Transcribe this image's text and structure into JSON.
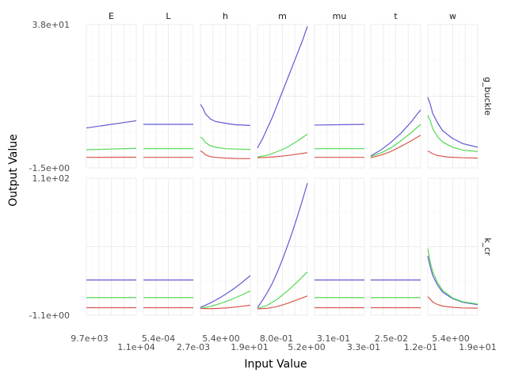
{
  "chart_data": {
    "type": "line",
    "xlabel": "Input Value",
    "ylabel": "Output Value",
    "grid": true,
    "legend": "none",
    "columns": [
      "E",
      "L",
      "h",
      "m",
      "mu",
      "t",
      "w"
    ],
    "rows": [
      "g_buckle",
      "k_cr"
    ],
    "x_tick_labels": [
      {
        "label": "9.7e+03",
        "row": "top"
      },
      {
        "label": "1.1e+04",
        "row": "bottom"
      },
      {
        "label": "5.4e-04",
        "row": "top"
      },
      {
        "label": "2.7e-03",
        "row": "bottom"
      },
      {
        "label": "5.4e+00",
        "row": "top"
      },
      {
        "label": "1.9e+01",
        "row": "bottom"
      },
      {
        "label": "8.0e-01",
        "row": "top"
      },
      {
        "label": "5.2e+00",
        "row": "bottom"
      },
      {
        "label": "3.1e-01",
        "row": "top"
      },
      {
        "label": "3.3e-01",
        "row": "bottom"
      },
      {
        "label": "2.5e-02",
        "row": "top"
      },
      {
        "label": "1.2e-01",
        "row": "bottom"
      },
      {
        "label": "5.4e+00",
        "row": "top"
      },
      {
        "label": "1.9e+01",
        "row": "bottom"
      }
    ],
    "y_ticks": [
      {
        "row": "g_buckle",
        "labels": [
          "3.8e+01",
          "-1.5e+00"
        ],
        "range": [
          -1.5,
          38
        ]
      },
      {
        "row": "k_cr",
        "labels": [
          "1.1e+02",
          "-1.1e+00"
        ],
        "range": [
          -1.1,
          110
        ]
      }
    ],
    "series_colors": [
      "#6159d4",
      "#55d955",
      "#d9574e"
    ],
    "panels": [
      {
        "row": "g_buckle",
        "col": "E",
        "series": [
          [
            [
              0,
              9.5
            ],
            [
              1,
              11.5
            ]
          ],
          [
            [
              0,
              3.5
            ],
            [
              1,
              3.9
            ]
          ],
          [
            [
              0,
              1.4
            ],
            [
              1,
              1.45
            ]
          ]
        ]
      },
      {
        "row": "g_buckle",
        "col": "L",
        "series": [
          [
            [
              0,
              10.5
            ],
            [
              1,
              10.5
            ]
          ],
          [
            [
              0,
              3.8
            ],
            [
              1,
              3.8
            ]
          ],
          [
            [
              0,
              1.4
            ],
            [
              1,
              1.4
            ]
          ]
        ]
      },
      {
        "row": "g_buckle",
        "col": "h",
        "series": [
          [
            [
              0,
              16
            ],
            [
              0.05,
              15
            ],
            [
              0.1,
              13.4
            ],
            [
              0.2,
              12
            ],
            [
              0.3,
              11.3
            ],
            [
              0.5,
              10.8
            ],
            [
              0.7,
              10.4
            ],
            [
              1,
              10.2
            ]
          ],
          [
            [
              0,
              7
            ],
            [
              0.05,
              6.5
            ],
            [
              0.1,
              5.5
            ],
            [
              0.2,
              4.6
            ],
            [
              0.3,
              4.2
            ],
            [
              0.5,
              3.8
            ],
            [
              0.7,
              3.7
            ],
            [
              1,
              3.6
            ]
          ],
          [
            [
              0,
              3.2
            ],
            [
              0.05,
              2.8
            ],
            [
              0.1,
              2.1
            ],
            [
              0.2,
              1.6
            ],
            [
              0.3,
              1.4
            ],
            [
              0.5,
              1.2
            ],
            [
              0.7,
              1.1
            ],
            [
              1,
              1.05
            ]
          ]
        ]
      },
      {
        "row": "g_buckle",
        "col": "m",
        "series": [
          [
            [
              0,
              4
            ],
            [
              0.1,
              6.5
            ],
            [
              0.2,
              9.5
            ],
            [
              0.3,
              12.5
            ],
            [
              0.4,
              16
            ],
            [
              0.5,
              19.5
            ],
            [
              0.6,
              23
            ],
            [
              0.7,
              26.5
            ],
            [
              0.8,
              30
            ],
            [
              0.9,
              33.5
            ],
            [
              1,
              37.5
            ]
          ],
          [
            [
              0,
              1.5
            ],
            [
              0.2,
              2
            ],
            [
              0.4,
              3
            ],
            [
              0.6,
              4.2
            ],
            [
              0.8,
              5.9
            ],
            [
              1,
              7.8
            ]
          ],
          [
            [
              0,
              1.3
            ],
            [
              0.3,
              1.5
            ],
            [
              0.6,
              1.9
            ],
            [
              0.8,
              2.3
            ],
            [
              1,
              2.7
            ]
          ]
        ]
      },
      {
        "row": "g_buckle",
        "col": "mu",
        "series": [
          [
            [
              0,
              10.3
            ],
            [
              1,
              10.5
            ]
          ],
          [
            [
              0,
              3.8
            ],
            [
              1,
              3.8
            ]
          ],
          [
            [
              0,
              1.4
            ],
            [
              1,
              1.4
            ]
          ]
        ]
      },
      {
        "row": "g_buckle",
        "col": "t",
        "series": [
          [
            [
              0,
              1.8
            ],
            [
              0.2,
              3.4
            ],
            [
              0.4,
              5.5
            ],
            [
              0.6,
              8
            ],
            [
              0.8,
              11
            ],
            [
              1,
              14.5
            ]
          ],
          [
            [
              0,
              1.6
            ],
            [
              0.2,
              2.6
            ],
            [
              0.4,
              4
            ],
            [
              0.6,
              5.9
            ],
            [
              0.8,
              8.1
            ],
            [
              1,
              10.5
            ]
          ],
          [
            [
              0,
              1.3
            ],
            [
              0.2,
              2
            ],
            [
              0.4,
              3
            ],
            [
              0.6,
              4.4
            ],
            [
              0.8,
              5.9
            ],
            [
              1,
              7.5
            ]
          ]
        ]
      },
      {
        "row": "g_buckle",
        "col": "w",
        "series": [
          [
            [
              0,
              18
            ],
            [
              0.05,
              16
            ],
            [
              0.1,
              13.5
            ],
            [
              0.2,
              10.8
            ],
            [
              0.3,
              8.7
            ],
            [
              0.5,
              6.6
            ],
            [
              0.7,
              5.2
            ],
            [
              1,
              4.2
            ]
          ],
          [
            [
              0,
              13
            ],
            [
              0.05,
              11.5
            ],
            [
              0.1,
              9.3
            ],
            [
              0.2,
              7
            ],
            [
              0.3,
              5.6
            ],
            [
              0.5,
              4.2
            ],
            [
              0.7,
              3.4
            ],
            [
              1,
              3
            ]
          ],
          [
            [
              0,
              3.2
            ],
            [
              0.1,
              2.4
            ],
            [
              0.2,
              1.9
            ],
            [
              0.4,
              1.5
            ],
            [
              0.7,
              1.3
            ],
            [
              1,
              1.2
            ]
          ]
        ]
      },
      {
        "row": "k_cr",
        "col": "E",
        "series": [
          [
            [
              0,
              27.5
            ],
            [
              1,
              27.5
            ]
          ],
          [
            [
              0,
              13.2
            ],
            [
              1,
              13.2
            ]
          ],
          [
            [
              0,
              5
            ],
            [
              1,
              5
            ]
          ]
        ]
      },
      {
        "row": "k_cr",
        "col": "L",
        "series": [
          [
            [
              0,
              27.5
            ],
            [
              1,
              27.5
            ]
          ],
          [
            [
              0,
              13.2
            ],
            [
              1,
              13.2
            ]
          ],
          [
            [
              0,
              5
            ],
            [
              1,
              5
            ]
          ]
        ]
      },
      {
        "row": "k_cr",
        "col": "h",
        "series": [
          [
            [
              0,
              5.4
            ],
            [
              0.1,
              7
            ],
            [
              0.2,
              8.9
            ],
            [
              0.3,
              11
            ],
            [
              0.4,
              13.3
            ],
            [
              0.5,
              15.8
            ],
            [
              0.6,
              18.5
            ],
            [
              0.7,
              21.3
            ],
            [
              0.8,
              24.4
            ],
            [
              0.9,
              27.7
            ],
            [
              1,
              31
            ]
          ],
          [
            [
              0,
              4.5
            ],
            [
              0.2,
              6.1
            ],
            [
              0.4,
              8.4
            ],
            [
              0.6,
              11.3
            ],
            [
              0.8,
              14.8
            ],
            [
              1,
              18.5
            ]
          ],
          [
            [
              0,
              4.4
            ],
            [
              0.2,
              4.2
            ],
            [
              0.4,
              4.5
            ],
            [
              0.6,
              5.1
            ],
            [
              0.8,
              6
            ],
            [
              1,
              7
            ]
          ]
        ]
      },
      {
        "row": "k_cr",
        "col": "m",
        "series": [
          [
            [
              0,
              5
            ],
            [
              0.1,
              11
            ],
            [
              0.2,
              17.5
            ],
            [
              0.3,
              25
            ],
            [
              0.4,
              34
            ],
            [
              0.5,
              44
            ],
            [
              0.6,
              55
            ],
            [
              0.7,
              66.5
            ],
            [
              0.8,
              79
            ],
            [
              0.9,
              92
            ],
            [
              1,
              106
            ]
          ],
          [
            [
              0,
              4.3
            ],
            [
              0.2,
              7
            ],
            [
              0.4,
              12
            ],
            [
              0.6,
              18.5
            ],
            [
              0.8,
              26
            ],
            [
              1,
              34
            ]
          ],
          [
            [
              0,
              4.1
            ],
            [
              0.2,
              4.5
            ],
            [
              0.4,
              6
            ],
            [
              0.6,
              8.5
            ],
            [
              0.8,
              11.5
            ],
            [
              1,
              14.5
            ]
          ]
        ]
      },
      {
        "row": "k_cr",
        "col": "mu",
        "series": [
          [
            [
              0,
              27.5
            ],
            [
              1,
              27.5
            ]
          ],
          [
            [
              0,
              13.2
            ],
            [
              1,
              13.2
            ]
          ],
          [
            [
              0,
              5
            ],
            [
              1,
              5
            ]
          ]
        ]
      },
      {
        "row": "k_cr",
        "col": "t",
        "series": [
          [
            [
              0,
              27.5
            ],
            [
              1,
              27.5
            ]
          ],
          [
            [
              0,
              13.2
            ],
            [
              1,
              13.2
            ]
          ],
          [
            [
              0,
              5
            ],
            [
              1,
              5
            ]
          ]
        ]
      },
      {
        "row": "k_cr",
        "col": "w",
        "series": [
          [
            [
              0,
              47
            ],
            [
              0.05,
              38
            ],
            [
              0.1,
              31
            ],
            [
              0.2,
              23
            ],
            [
              0.3,
              17.5
            ],
            [
              0.5,
              12.3
            ],
            [
              0.7,
              9.4
            ],
            [
              1,
              7.5
            ]
          ],
          [
            [
              0,
              53
            ],
            [
              0.05,
              42
            ],
            [
              0.1,
              34
            ],
            [
              0.2,
              25
            ],
            [
              0.3,
              19
            ],
            [
              0.5,
              12.8
            ],
            [
              0.7,
              9.8
            ],
            [
              1,
              8
            ]
          ],
          [
            [
              0,
              14
            ],
            [
              0.05,
              11.8
            ],
            [
              0.1,
              9.6
            ],
            [
              0.2,
              7.5
            ],
            [
              0.3,
              6.3
            ],
            [
              0.5,
              5.3
            ],
            [
              0.7,
              4.8
            ],
            [
              1,
              4.6
            ]
          ]
        ]
      }
    ]
  }
}
